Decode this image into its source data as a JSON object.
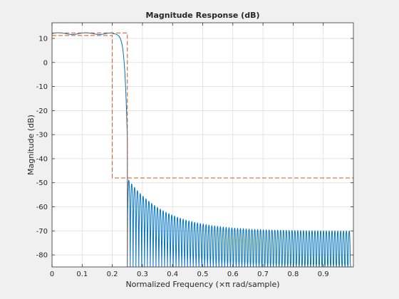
{
  "chart_data": {
    "type": "line",
    "title": "Magnitude Response (dB)",
    "xlabel": "Normalized Frequency  (×π rad/sample)",
    "ylabel": "Magnitude (dB)",
    "xlim": [
      0,
      1
    ],
    "ylim": [
      -85,
      16.5
    ],
    "grid": true,
    "x_ticks": [
      0,
      0.1,
      0.2,
      0.3,
      0.4,
      0.5,
      0.6,
      0.7,
      0.8,
      0.9
    ],
    "x_tick_labels": [
      "0",
      "0.1",
      "0.2",
      "0.3",
      "0.4",
      "0.5",
      "0.6",
      "0.7",
      "0.8",
      "0.9"
    ],
    "y_ticks": [
      10,
      0,
      -10,
      -20,
      -30,
      -40,
      -50,
      -60,
      -70,
      -80
    ],
    "y_tick_labels": [
      "10",
      "0",
      "-10",
      "-20",
      "-30",
      "-40",
      "-50",
      "-60",
      "-70",
      "-80"
    ],
    "series": [
      {
        "role": "magnitude response",
        "color": "#0072bd",
        "passband_edge": 0.2,
        "stopband_edge": 0.25,
        "passband_level_db": 12,
        "sidelobe_peak_start_db": -48,
        "sidelobe_envelope_end_db": -70,
        "null_floor_db": -85
      },
      {
        "role": "specification mask",
        "color": "#d95319",
        "style": "dashed",
        "polylines": [
          [
            [
              0,
              12.3
            ],
            [
              0.25,
              12.3
            ],
            [
              0.25,
              -85
            ]
          ],
          [
            [
              0,
              11.2
            ],
            [
              0.2,
              11.2
            ],
            [
              0.2,
              -48
            ],
            [
              1,
              -48
            ]
          ]
        ]
      }
    ]
  }
}
